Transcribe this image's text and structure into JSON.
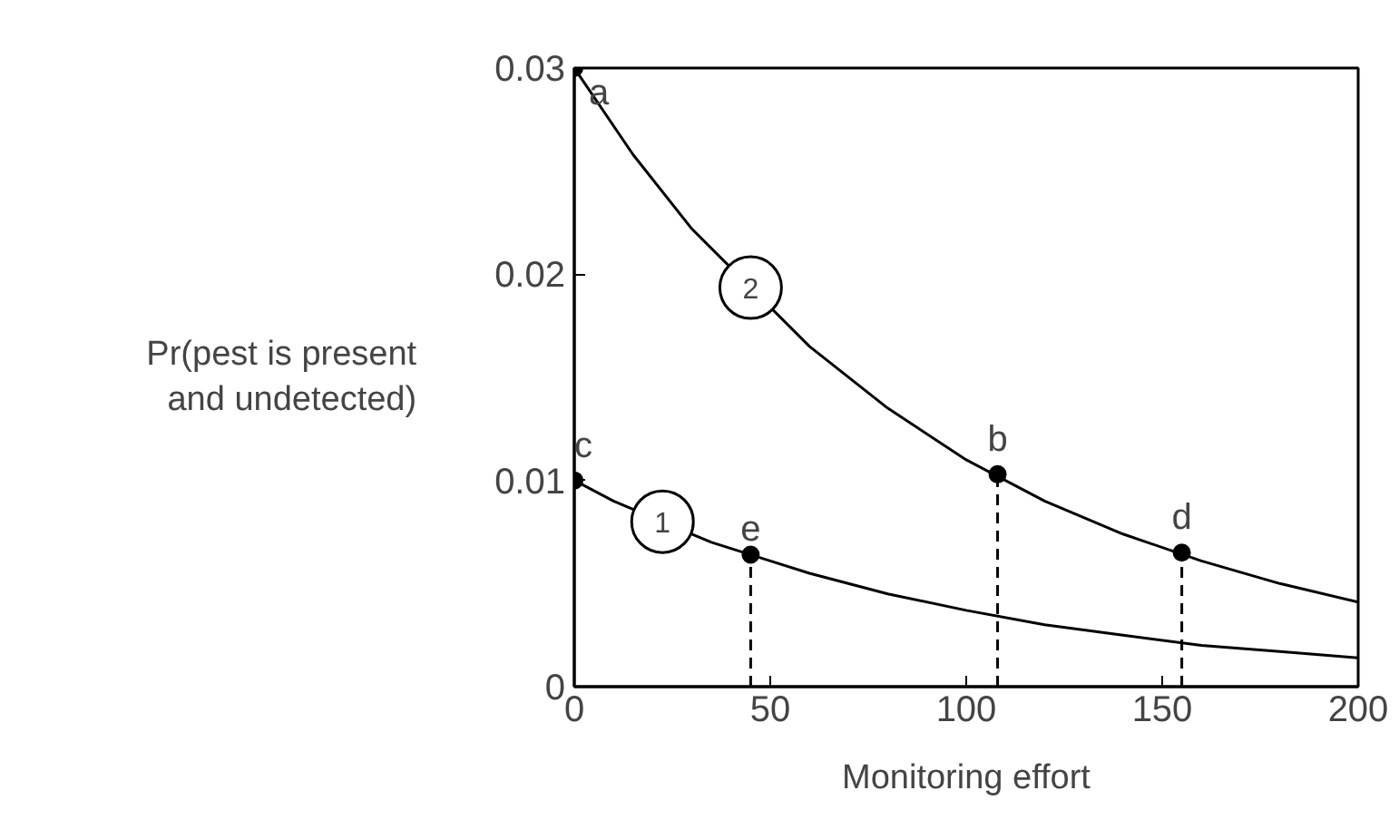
{
  "chart_data": {
    "type": "line",
    "xlabel": "Monitoring effort",
    "ylabel": "Pr(pest is present\nand undetected)",
    "xlim": [
      0,
      200
    ],
    "ylim": [
      0,
      0.03
    ],
    "xticks": [
      0,
      50,
      100,
      150,
      200
    ],
    "yticks": [
      0,
      0.01,
      0.02,
      0.03
    ],
    "grid": false,
    "legend": false,
    "series": [
      {
        "name": "2",
        "color": "#000000",
        "x": [
          0,
          15,
          30,
          60,
          80,
          100,
          120,
          140,
          160,
          180,
          200
        ],
        "values": [
          0.03,
          0.0258,
          0.0222,
          0.0165,
          0.0135,
          0.011,
          0.009,
          0.0074,
          0.0061,
          0.005,
          0.0041
        ]
      },
      {
        "name": "1",
        "color": "#000000",
        "x": [
          0,
          10,
          35,
          50,
          60,
          80,
          100,
          120,
          140,
          160,
          180,
          200
        ],
        "values": [
          0.01,
          0.009,
          0.007,
          0.0061,
          0.0055,
          0.0045,
          0.0037,
          0.003,
          0.0025,
          0.002,
          0.0017,
          0.0014
        ]
      },
      {
        "type": "line",
        "color": "#000000",
        "line_style": "dashed",
        "x": [
          45,
          45
        ],
        "values": [
          0,
          0.0064
        ]
      },
      {
        "type": "line",
        "color": "#000000",
        "line_style": "dashed",
        "x": [
          108,
          108
        ],
        "values": [
          0,
          0.0103
        ]
      },
      {
        "type": "line",
        "color": "#000000",
        "line_style": "dashed",
        "x": [
          155,
          155
        ],
        "values": [
          0,
          0.0065
        ]
      },
      {
        "type": "scatter",
        "color": "#000000",
        "marker": "circle",
        "x": [
          0,
          108,
          0,
          155,
          45
        ],
        "values": [
          0.03,
          0.0103,
          0.01,
          0.0065,
          0.0064
        ]
      }
    ],
    "annotations": [
      {
        "text": "a",
        "x": 0,
        "y": 0.03
      },
      {
        "text": "b",
        "x": 108,
        "y": 0.0103
      },
      {
        "text": "c",
        "x": 0,
        "y": 0.01
      },
      {
        "text": "d",
        "x": 155,
        "y": 0.0065
      },
      {
        "text": "e",
        "x": 45,
        "y": 0.0064
      }
    ]
  }
}
